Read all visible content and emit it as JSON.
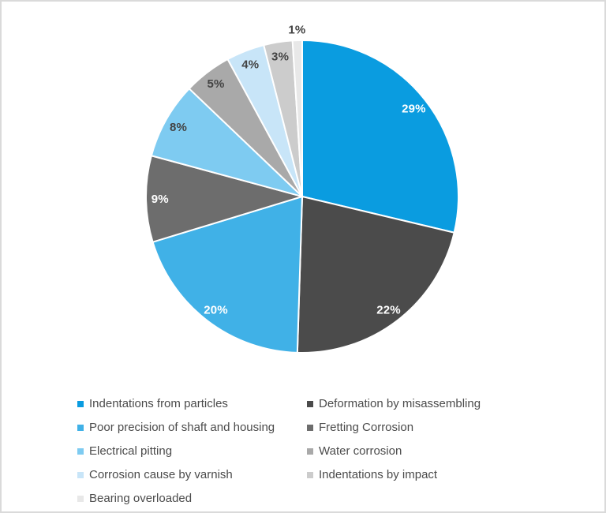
{
  "chart_data": {
    "type": "pie",
    "title": "",
    "start_position": "top",
    "direction": "clockwise",
    "grid": false,
    "legend_position": "bottom",
    "legend_columns": 2,
    "slice_border_color": "#ffffff",
    "slices": [
      {
        "label": "Indentations from particles",
        "value": 29,
        "display": "29%",
        "color": "#0a9ce0",
        "label_color": "#ffffff",
        "label_placement": "inside"
      },
      {
        "label": "Deformation by misassembling",
        "value": 22,
        "display": "22%",
        "color": "#4b4b4b",
        "label_color": "#ffffff",
        "label_placement": "inside"
      },
      {
        "label": "Poor precision of shaft and housing",
        "value": 20,
        "display": "20%",
        "color": "#40b1e7",
        "label_color": "#ffffff",
        "label_placement": "inside"
      },
      {
        "label": "Fretting Corrosion",
        "value": 9,
        "display": "9%",
        "color": "#6d6d6d",
        "label_color": "#ffffff",
        "label_placement": "inside"
      },
      {
        "label": "Electrical pitting",
        "value": 8,
        "display": "8%",
        "color": "#7ecbf1",
        "label_color": "#434343",
        "label_placement": "inside"
      },
      {
        "label": "Water corrosion",
        "value": 5,
        "display": "5%",
        "color": "#a9a9a9",
        "label_color": "#434343",
        "label_placement": "inside"
      },
      {
        "label": "Corrosion cause by varnish",
        "value": 4,
        "display": "4%",
        "color": "#c8e5f8",
        "label_color": "#434343",
        "label_placement": "inside"
      },
      {
        "label": "Indentations by impact",
        "value": 3,
        "display": "3%",
        "color": "#cccccc",
        "label_color": "#434343",
        "label_placement": "inside"
      },
      {
        "label": "Bearing overloaded",
        "value": 1,
        "display": "1%",
        "color": "#e8e8e8",
        "label_color": "#434343",
        "label_placement": "outside"
      }
    ]
  }
}
